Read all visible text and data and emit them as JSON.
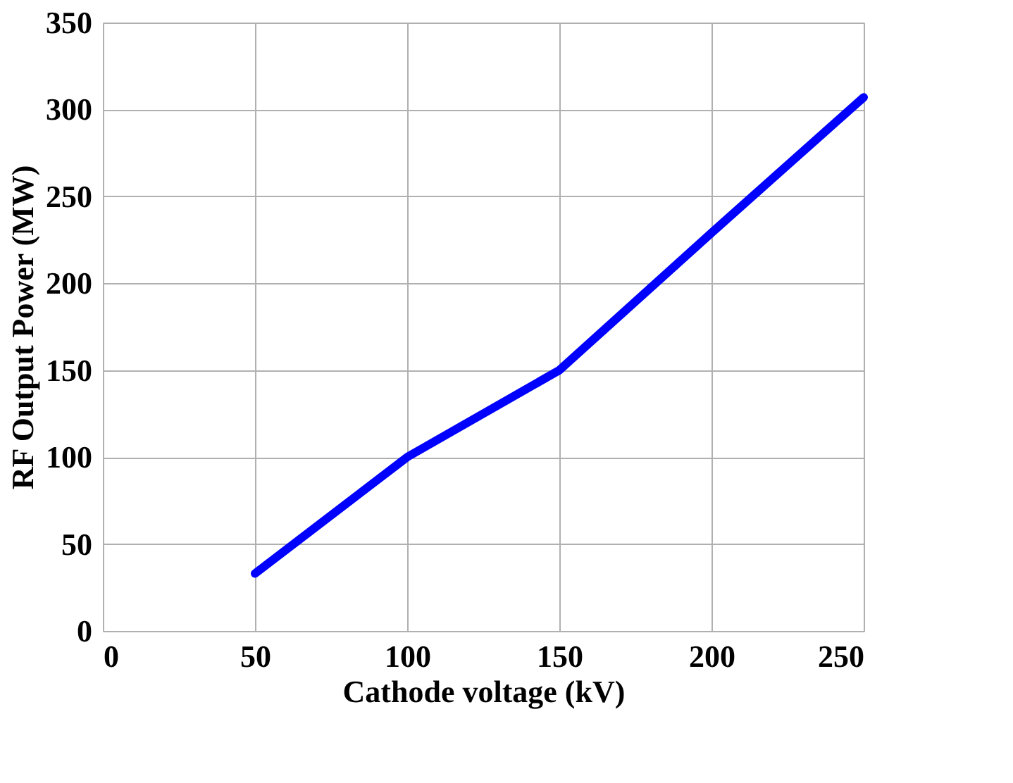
{
  "chart_data": {
    "type": "line",
    "xlabel": "Cathode voltage (kV)",
    "ylabel": "RF Output Power (MW)",
    "x": [
      50,
      100,
      150,
      200,
      250
    ],
    "series": [
      {
        "color": "#0000ff",
        "values": [
          33,
          100,
          150,
          229,
          307
        ]
      }
    ],
    "xlim": [
      0,
      250
    ],
    "xticks": [
      0,
      50,
      100,
      150,
      200,
      250
    ],
    "ylim": [
      0,
      350
    ],
    "yticks": [
      0,
      50,
      100,
      150,
      200,
      250,
      300,
      350
    ],
    "grid": true,
    "marker": "none",
    "line_style": "solid"
  }
}
